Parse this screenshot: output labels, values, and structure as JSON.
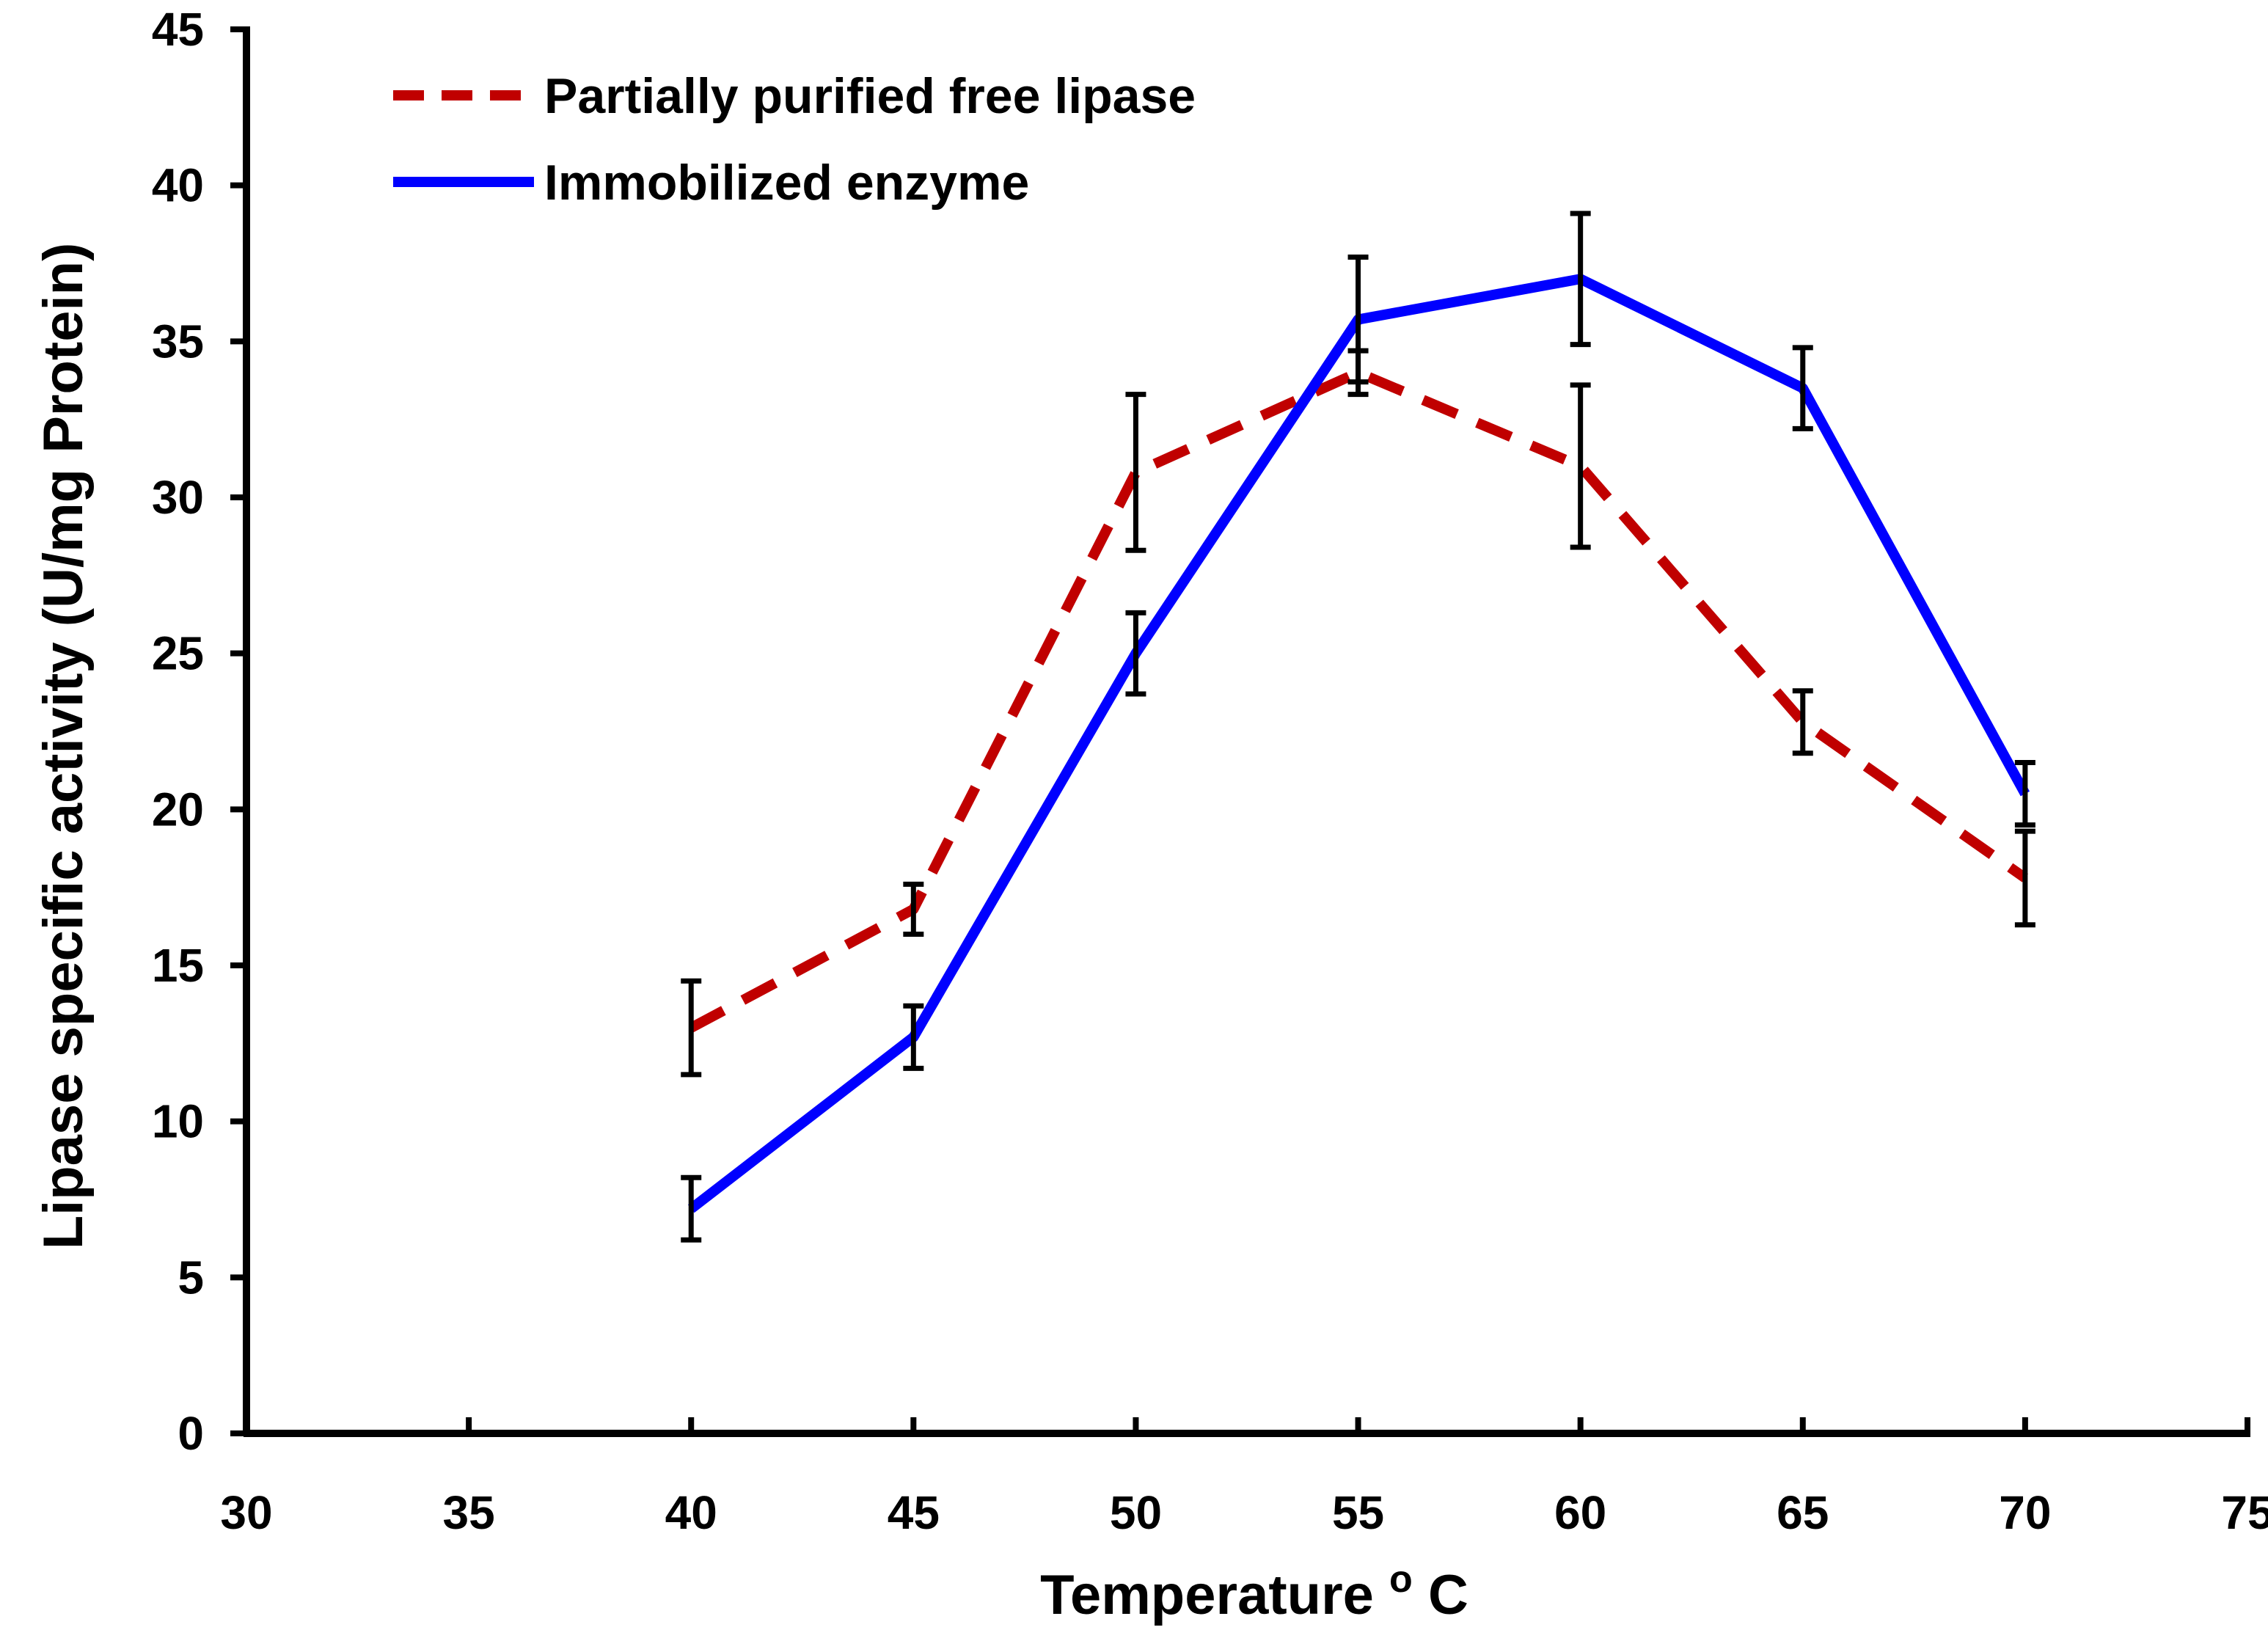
{
  "chart_data": {
    "type": "line",
    "title": "",
    "xlabel": "Temperature",
    "xlabel_unit_superscript": "o",
    "xlabel_unit": "C",
    "ylabel": "Lipase specific activity (U/mg Protein)",
    "xlim": [
      30,
      75
    ],
    "ylim": [
      0,
      45
    ],
    "x_ticks": [
      30,
      35,
      40,
      45,
      50,
      55,
      60,
      65,
      70,
      75
    ],
    "y_ticks": [
      0,
      5,
      10,
      15,
      20,
      25,
      30,
      35,
      40,
      45
    ],
    "grid": false,
    "legend_position": "top-left",
    "x": [
      40,
      45,
      50,
      55,
      60,
      65,
      70
    ],
    "series": [
      {
        "name": "Partially purified free lipase",
        "style": "dashed",
        "color": "#c00000",
        "values": [
          13.0,
          16.8,
          30.8,
          34.0,
          31.0,
          22.8,
          17.8
        ],
        "error": [
          1.5,
          0.8,
          2.5,
          0.7,
          2.6,
          1.0,
          1.5
        ]
      },
      {
        "name": "Immobilized enzyme",
        "style": "solid",
        "color": "#0000ff",
        "values": [
          7.2,
          12.7,
          25.0,
          35.7,
          37.0,
          33.5,
          20.5
        ],
        "error": [
          1.0,
          1.0,
          1.3,
          2.0,
          2.1,
          1.3,
          1.0
        ]
      }
    ]
  }
}
